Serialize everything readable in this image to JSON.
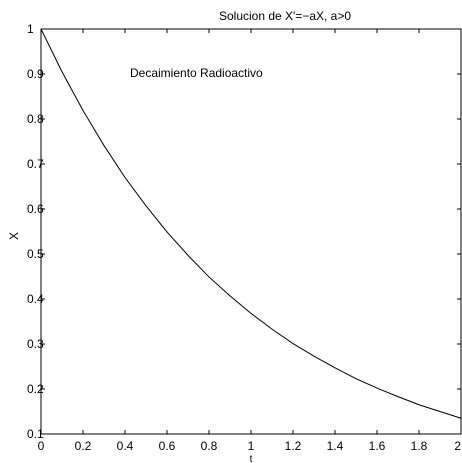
{
  "chart_data": {
    "type": "line",
    "title": "Solucion de X'=−aX, a>0",
    "xlabel": "t",
    "ylabel": "X",
    "annotation": "Decaimiento Radioactivo",
    "xlim": [
      0,
      2
    ],
    "ylim": [
      0.1,
      1
    ],
    "x_ticks": [
      0,
      0.2,
      0.4,
      0.6,
      0.8,
      1,
      1.2,
      1.4,
      1.6,
      1.8,
      2
    ],
    "x_tick_labels": [
      "0",
      "0.2",
      "0.4",
      "0.6",
      "0.8",
      "1",
      "1.2",
      "1.4",
      "1.6",
      "1.8",
      "2"
    ],
    "y_ticks": [
      0.1,
      0.2,
      0.3,
      0.4,
      0.5,
      0.6,
      0.7,
      0.8,
      0.9,
      1
    ],
    "y_tick_labels": [
      "0.1",
      "0.2",
      "0.3",
      "0.4",
      "0.5",
      "0.6",
      "0.7",
      "0.8",
      "0.9",
      "1"
    ],
    "grid": false,
    "line_color": "#000000",
    "series": [
      {
        "x": [
          0,
          0.1,
          0.2,
          0.3,
          0.4,
          0.5,
          0.6,
          0.7,
          0.8,
          0.9,
          1.0,
          1.1,
          1.2,
          1.3,
          1.4,
          1.5,
          1.6,
          1.7,
          1.8,
          1.9,
          2.0
        ],
        "values": [
          1.0,
          0.905,
          0.819,
          0.741,
          0.67,
          0.607,
          0.549,
          0.497,
          0.449,
          0.407,
          0.368,
          0.333,
          0.301,
          0.273,
          0.247,
          0.223,
          0.202,
          0.183,
          0.165,
          0.15,
          0.135
        ]
      }
    ]
  }
}
